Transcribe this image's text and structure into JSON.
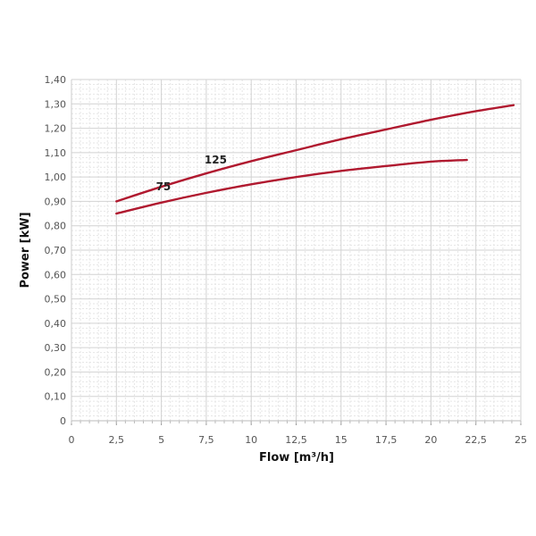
{
  "chart_data": {
    "type": "line",
    "xlabel": "Flow [m³/h]",
    "ylabel": "Power [kW]",
    "xlim": [
      0,
      25
    ],
    "ylim": [
      0,
      1.4
    ],
    "x_ticks": [
      "0",
      "2,5",
      "5",
      "7,5",
      "10",
      "12,5",
      "15",
      "17,5",
      "20",
      "22,5",
      "25"
    ],
    "y_ticks": [
      "0",
      "0,10",
      "0,20",
      "0,30",
      "0,40",
      "0,50",
      "0,60",
      "0,70",
      "0,80",
      "0,90",
      "1,00",
      "1,10",
      "1,20",
      "1,30",
      "1,40"
    ],
    "grid": true,
    "legend": "none",
    "series": [
      {
        "name": "125",
        "color": "#b0192f",
        "x": [
          2.5,
          5,
          7.5,
          10,
          12.5,
          15,
          17.5,
          20,
          22.5,
          24.6
        ],
        "y": [
          0.9,
          0.96,
          1.015,
          1.065,
          1.11,
          1.155,
          1.195,
          1.235,
          1.27,
          1.295
        ]
      },
      {
        "name": "75",
        "color": "#b0192f",
        "x": [
          2.5,
          5,
          7.5,
          10,
          12.5,
          15,
          17.5,
          20,
          22
        ],
        "y": [
          0.85,
          0.895,
          0.935,
          0.97,
          1.0,
          1.025,
          1.045,
          1.063,
          1.07
        ]
      }
    ]
  }
}
